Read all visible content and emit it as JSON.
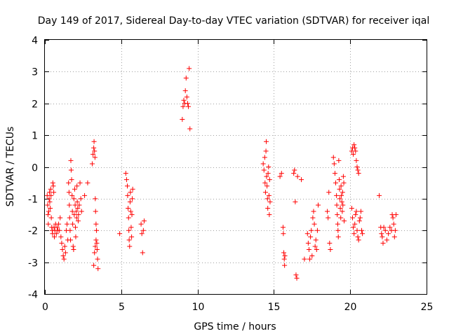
{
  "chart_data": {
    "type": "scatter",
    "title": "Day 149 of 2017, Sidereal Day-to-day VTEC variation (SDTVAR) for receiver iqal",
    "xlabel": "GPS time / hours",
    "ylabel": "SDTVAR / TECUs",
    "xlim": [
      0,
      25
    ],
    "ylim": [
      -4,
      4
    ],
    "xticks": [
      0,
      5,
      10,
      15,
      20,
      25
    ],
    "yticks": [
      -4,
      -3,
      -2,
      -1,
      0,
      1,
      2,
      3,
      4
    ],
    "xtick_labels": [
      "0",
      "5",
      "10",
      "15",
      "20",
      "25"
    ],
    "ytick_labels": [
      "-4",
      "-3",
      "-2",
      "-1",
      "0",
      "1",
      "2",
      "3",
      "4"
    ],
    "grid": true,
    "marker": "plus",
    "color": "#ff0000",
    "series": [
      {
        "name": "SDTVAR",
        "points": [
          [
            0.15,
            -0.9
          ],
          [
            0.18,
            -1.2
          ],
          [
            0.2,
            -1.5
          ],
          [
            0.22,
            -1.8
          ],
          [
            0.25,
            -1.4
          ],
          [
            0.28,
            -1.0
          ],
          [
            0.3,
            -0.8
          ],
          [
            0.32,
            -1.1
          ],
          [
            0.35,
            -1.3
          ],
          [
            0.38,
            -0.7
          ],
          [
            0.4,
            -0.9
          ],
          [
            0.42,
            -1.6
          ],
          [
            0.45,
            -1.9
          ],
          [
            0.48,
            -2.0
          ],
          [
            0.5,
            -2.1
          ],
          [
            0.52,
            -0.5
          ],
          [
            0.55,
            -0.6
          ],
          [
            0.58,
            -0.8
          ],
          [
            0.6,
            -1.9
          ],
          [
            0.62,
            -2.2
          ],
          [
            0.65,
            -2.0
          ],
          [
            0.7,
            -1.8
          ],
          [
            0.75,
            -2.1
          ],
          [
            0.8,
            -1.9
          ],
          [
            0.85,
            -2.0
          ],
          [
            0.9,
            -1.8
          ],
          [
            0.95,
            -2.0
          ],
          [
            1.0,
            -1.6
          ],
          [
            1.05,
            -2.2
          ],
          [
            1.1,
            -2.4
          ],
          [
            1.15,
            -2.6
          ],
          [
            1.2,
            -2.8
          ],
          [
            1.25,
            -2.9
          ],
          [
            1.3,
            -2.5
          ],
          [
            1.35,
            -2.7
          ],
          [
            1.4,
            -2.0
          ],
          [
            1.45,
            -1.8
          ],
          [
            1.5,
            -2.3
          ],
          [
            1.55,
            -0.5
          ],
          [
            1.58,
            -0.8
          ],
          [
            1.6,
            -1.2
          ],
          [
            1.62,
            -1.6
          ],
          [
            1.65,
            -2.0
          ],
          [
            1.68,
            -2.3
          ],
          [
            1.7,
            0.2
          ],
          [
            1.72,
            -0.1
          ],
          [
            1.75,
            -0.4
          ],
          [
            1.78,
            -0.9
          ],
          [
            1.8,
            -1.4
          ],
          [
            1.82,
            -1.8
          ],
          [
            1.85,
            -2.5
          ],
          [
            1.88,
            -2.6
          ],
          [
            1.9,
            -1.0
          ],
          [
            1.92,
            -1.5
          ],
          [
            1.95,
            -0.7
          ],
          [
            1.98,
            -1.2
          ],
          [
            2.0,
            -1.9
          ],
          [
            2.02,
            -2.2
          ],
          [
            2.05,
            -1.4
          ],
          [
            2.08,
            -1.6
          ],
          [
            2.1,
            -0.6
          ],
          [
            2.12,
            -1.1
          ],
          [
            2.15,
            -1.3
          ],
          [
            2.18,
            -1.7
          ],
          [
            2.2,
            -1.5
          ],
          [
            2.25,
            -1.2
          ],
          [
            2.3,
            -0.5
          ],
          [
            2.35,
            -1.0
          ],
          [
            2.4,
            -1.4
          ],
          [
            2.6,
            -0.9
          ],
          [
            2.8,
            -0.5
          ],
          [
            3.1,
            0.1
          ],
          [
            3.15,
            0.4
          ],
          [
            3.2,
            0.6
          ],
          [
            3.22,
            0.8
          ],
          [
            3.25,
            0.5
          ],
          [
            3.28,
            0.3
          ],
          [
            3.3,
            -1.0
          ],
          [
            3.32,
            -1.4
          ],
          [
            3.35,
            -1.8
          ],
          [
            3.38,
            -2.0
          ],
          [
            3.4,
            -2.4
          ],
          [
            3.42,
            -2.6
          ],
          [
            3.45,
            -2.9
          ],
          [
            3.48,
            -3.2
          ],
          [
            3.2,
            -3.1
          ],
          [
            3.25,
            -2.7
          ],
          [
            3.3,
            -2.5
          ],
          [
            3.35,
            -2.3
          ],
          [
            4.9,
            -2.1
          ],
          [
            5.3,
            -0.2
          ],
          [
            5.35,
            -0.4
          ],
          [
            5.4,
            -0.6
          ],
          [
            5.42,
            -0.9
          ],
          [
            5.45,
            -1.3
          ],
          [
            5.48,
            -1.6
          ],
          [
            5.5,
            -2.0
          ],
          [
            5.52,
            -2.3
          ],
          [
            5.55,
            -2.5
          ],
          [
            5.58,
            -1.1
          ],
          [
            5.6,
            -0.8
          ],
          [
            5.62,
            -1.4
          ],
          [
            5.65,
            -1.9
          ],
          [
            5.68,
            -2.2
          ],
          [
            5.7,
            -1.5
          ],
          [
            5.72,
            -1.0
          ],
          [
            5.75,
            -0.7
          ],
          [
            6.3,
            -1.8
          ],
          [
            6.35,
            -2.1
          ],
          [
            6.4,
            -2.7
          ],
          [
            6.45,
            -2.0
          ],
          [
            6.5,
            -1.7
          ],
          [
            9.0,
            1.5
          ],
          [
            9.05,
            1.9
          ],
          [
            9.1,
            2.1
          ],
          [
            9.15,
            2.0
          ],
          [
            9.2,
            2.4
          ],
          [
            9.25,
            2.8
          ],
          [
            9.3,
            2.2
          ],
          [
            9.35,
            2.0
          ],
          [
            9.4,
            1.9
          ],
          [
            9.45,
            3.1
          ],
          [
            9.5,
            1.2
          ],
          [
            14.3,
            0.1
          ],
          [
            14.35,
            -0.1
          ],
          [
            14.4,
            0.3
          ],
          [
            14.42,
            -0.5
          ],
          [
            14.45,
            -0.8
          ],
          [
            14.48,
            0.5
          ],
          [
            14.5,
            0.8
          ],
          [
            14.52,
            -0.3
          ],
          [
            14.55,
            -0.6
          ],
          [
            14.58,
            -1.0
          ],
          [
            14.6,
            -1.3
          ],
          [
            14.62,
            -0.2
          ],
          [
            14.65,
            0.0
          ],
          [
            14.68,
            -0.9
          ],
          [
            14.7,
            -1.5
          ],
          [
            14.72,
            -0.4
          ],
          [
            14.75,
            -1.1
          ],
          [
            15.4,
            -0.3
          ],
          [
            15.5,
            -0.2
          ],
          [
            15.6,
            -1.9
          ],
          [
            15.62,
            -2.1
          ],
          [
            15.65,
            -2.7
          ],
          [
            15.68,
            -2.9
          ],
          [
            15.7,
            -3.1
          ],
          [
            15.72,
            -2.8
          ],
          [
            16.3,
            -0.2
          ],
          [
            16.35,
            -0.1
          ],
          [
            16.4,
            -1.1
          ],
          [
            16.45,
            -3.4
          ],
          [
            16.5,
            -3.5
          ],
          [
            16.55,
            -0.3
          ],
          [
            16.8,
            -0.4
          ],
          [
            17.0,
            -2.9
          ],
          [
            17.2,
            -2.1
          ],
          [
            17.25,
            -2.4
          ],
          [
            17.3,
            -2.6
          ],
          [
            17.35,
            -2.9
          ],
          [
            17.4,
            -2.2
          ],
          [
            17.45,
            -2.0
          ],
          [
            17.5,
            -2.8
          ],
          [
            17.55,
            -1.6
          ],
          [
            17.6,
            -1.4
          ],
          [
            17.65,
            -1.8
          ],
          [
            17.7,
            -2.5
          ],
          [
            17.75,
            -2.3
          ],
          [
            17.8,
            -2.6
          ],
          [
            17.85,
            -2.0
          ],
          [
            17.9,
            -1.2
          ],
          [
            18.5,
            -1.4
          ],
          [
            18.55,
            -1.6
          ],
          [
            18.6,
            -0.8
          ],
          [
            18.65,
            -2.4
          ],
          [
            18.7,
            -2.6
          ],
          [
            18.9,
            0.3
          ],
          [
            18.95,
            0.1
          ],
          [
            19.0,
            -0.2
          ],
          [
            19.05,
            -0.5
          ],
          [
            19.1,
            -0.9
          ],
          [
            19.12,
            -1.2
          ],
          [
            19.15,
            -1.5
          ],
          [
            19.18,
            -1.8
          ],
          [
            19.2,
            -2.0
          ],
          [
            19.22,
            -2.2
          ],
          [
            19.25,
            0.2
          ],
          [
            19.28,
            -0.4
          ],
          [
            19.3,
            -0.7
          ],
          [
            19.32,
            -1.0
          ],
          [
            19.35,
            -1.3
          ],
          [
            19.38,
            -1.6
          ],
          [
            19.4,
            -0.6
          ],
          [
            19.42,
            -0.9
          ],
          [
            19.45,
            -1.1
          ],
          [
            19.48,
            -1.4
          ],
          [
            19.5,
            -0.8
          ],
          [
            19.52,
            -1.2
          ],
          [
            19.55,
            -0.3
          ],
          [
            19.58,
            -0.5
          ],
          [
            19.6,
            -1.7
          ],
          [
            20.1,
            0.5
          ],
          [
            20.15,
            0.6
          ],
          [
            20.2,
            0.4
          ],
          [
            20.25,
            0.7
          ],
          [
            20.3,
            0.6
          ],
          [
            20.35,
            0.5
          ],
          [
            20.4,
            0.2
          ],
          [
            20.45,
            0.0
          ],
          [
            20.5,
            -0.1
          ],
          [
            20.55,
            -0.2
          ],
          [
            20.1,
            -1.3
          ],
          [
            20.15,
            -1.6
          ],
          [
            20.2,
            -1.9
          ],
          [
            20.25,
            -2.1
          ],
          [
            20.3,
            -1.8
          ],
          [
            20.35,
            -1.5
          ],
          [
            20.4,
            -1.4
          ],
          [
            20.45,
            -2.0
          ],
          [
            20.5,
            -2.2
          ],
          [
            20.55,
            -2.3
          ],
          [
            20.6,
            -1.7
          ],
          [
            20.65,
            -1.6
          ],
          [
            20.7,
            -1.4
          ],
          [
            20.75,
            -2.0
          ],
          [
            20.8,
            -2.1
          ],
          [
            21.9,
            -0.9
          ],
          [
            22.0,
            -1.9
          ],
          [
            22.05,
            -2.1
          ],
          [
            22.1,
            -2.2
          ],
          [
            22.15,
            -2.4
          ],
          [
            22.2,
            -1.9
          ],
          [
            22.3,
            -2.0
          ],
          [
            22.4,
            -2.3
          ],
          [
            22.5,
            -2.1
          ],
          [
            22.6,
            -1.9
          ],
          [
            22.7,
            -2.0
          ],
          [
            22.75,
            -1.5
          ],
          [
            22.8,
            -1.6
          ],
          [
            22.85,
            -1.8
          ],
          [
            22.9,
            -2.2
          ],
          [
            22.95,
            -2.0
          ],
          [
            23.0,
            -1.5
          ]
        ]
      }
    ]
  }
}
